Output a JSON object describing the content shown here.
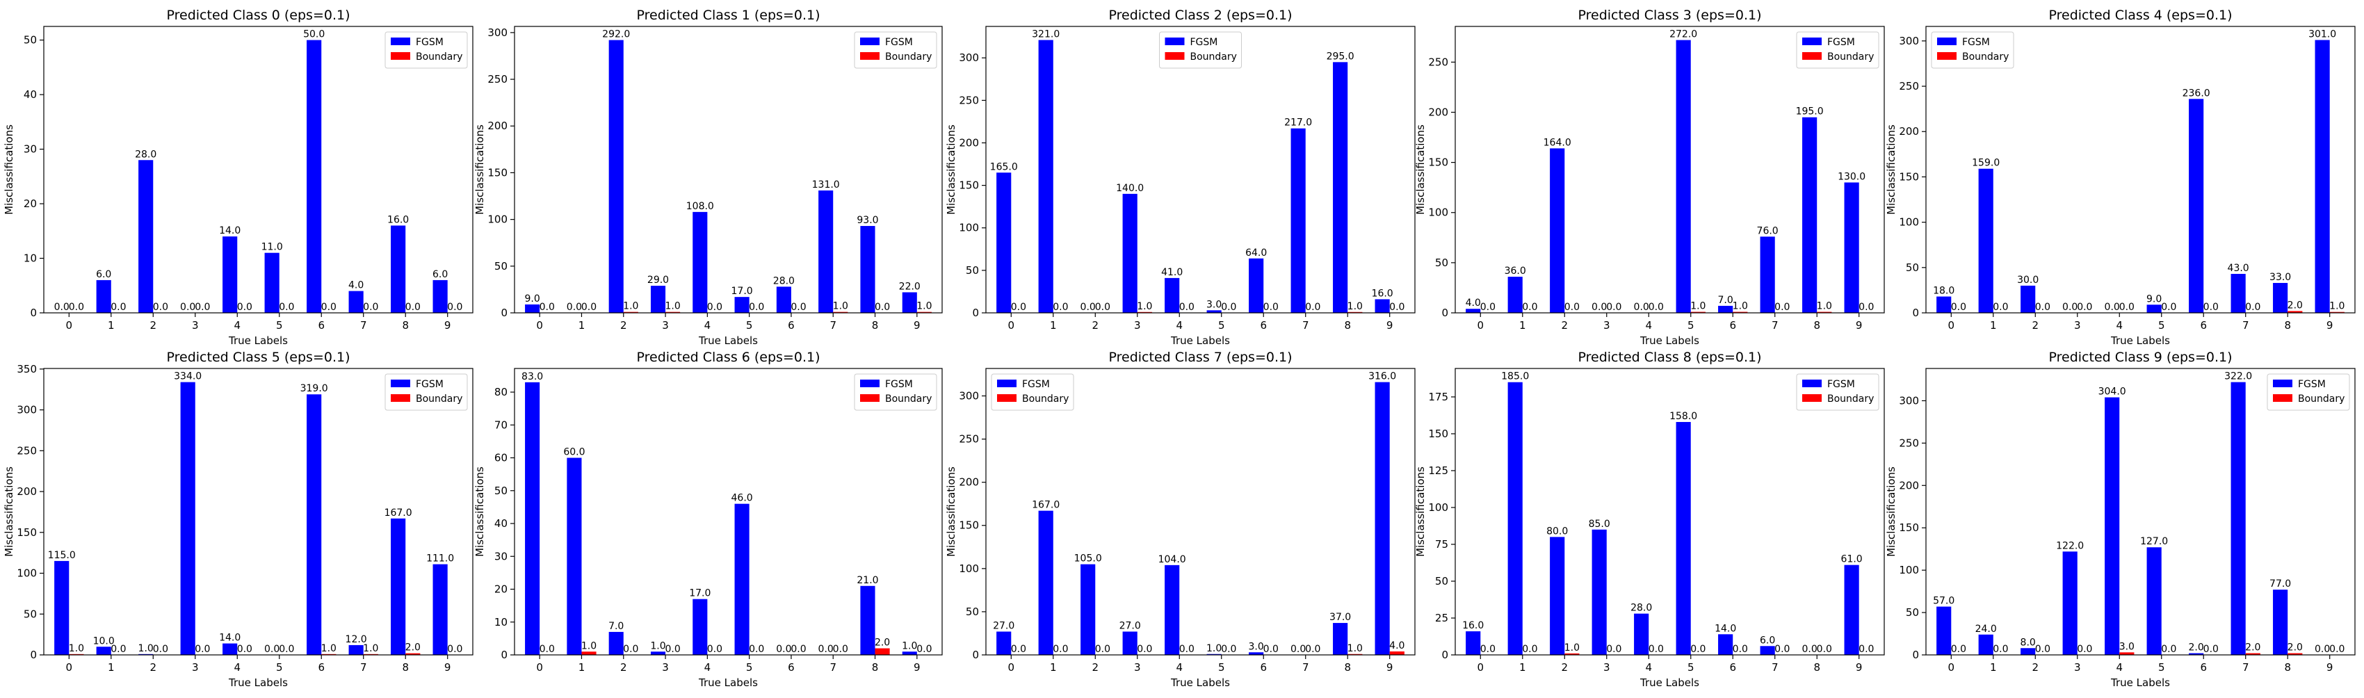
{
  "chart_data": [
    {
      "type": "bar",
      "title": "Predicted Class 0 (eps=0.1)",
      "xlabel": "True Labels",
      "ylabel": "Misclassifications",
      "categories": [
        "0",
        "1",
        "2",
        "3",
        "4",
        "5",
        "6",
        "7",
        "8",
        "9"
      ],
      "ylim": [
        0,
        52.5
      ],
      "yticks": [
        0,
        10,
        20,
        30,
        40,
        50
      ],
      "legend": "top-right",
      "series": [
        {
          "name": "FGSM",
          "color": "#0000ff",
          "values": [
            0,
            6,
            28,
            0,
            14,
            11,
            50,
            4,
            16,
            6
          ]
        },
        {
          "name": "Boundary",
          "color": "#ff0000",
          "values": [
            0,
            0,
            0,
            0,
            0,
            0,
            0,
            0,
            0,
            0
          ]
        }
      ]
    },
    {
      "type": "bar",
      "title": "Predicted Class 1 (eps=0.1)",
      "xlabel": "True Labels",
      "ylabel": "Misclassifications",
      "categories": [
        "0",
        "1",
        "2",
        "3",
        "4",
        "5",
        "6",
        "7",
        "8",
        "9"
      ],
      "ylim": [
        0,
        306.6
      ],
      "yticks": [
        0,
        50,
        100,
        150,
        200,
        250,
        300
      ],
      "legend": "top-right",
      "series": [
        {
          "name": "FGSM",
          "color": "#0000ff",
          "values": [
            9,
            0,
            292,
            29,
            108,
            17,
            28,
            131,
            93,
            22
          ]
        },
        {
          "name": "Boundary",
          "color": "#ff0000",
          "values": [
            0,
            0,
            1,
            1,
            0,
            0,
            0,
            1,
            0,
            1
          ]
        }
      ]
    },
    {
      "type": "bar",
      "title": "Predicted Class 2 (eps=0.1)",
      "xlabel": "True Labels",
      "ylabel": "Misclassifications",
      "categories": [
        "0",
        "1",
        "2",
        "3",
        "4",
        "5",
        "6",
        "7",
        "8",
        "9"
      ],
      "ylim": [
        0,
        337
      ],
      "yticks": [
        0,
        50,
        100,
        150,
        200,
        250,
        300
      ],
      "legend": "top-center",
      "series": [
        {
          "name": "FGSM",
          "color": "#0000ff",
          "values": [
            165,
            321,
            0,
            140,
            41,
            3,
            64,
            217,
            295,
            16
          ]
        },
        {
          "name": "Boundary",
          "color": "#ff0000",
          "values": [
            0,
            0,
            0,
            1,
            0,
            0,
            0,
            0,
            1,
            0
          ]
        }
      ]
    },
    {
      "type": "bar",
      "title": "Predicted Class 3 (eps=0.1)",
      "xlabel": "True Labels",
      "ylabel": "Misclassifications",
      "categories": [
        "0",
        "1",
        "2",
        "3",
        "4",
        "5",
        "6",
        "7",
        "8",
        "9"
      ],
      "ylim": [
        0,
        285.6
      ],
      "yticks": [
        0,
        50,
        100,
        150,
        200,
        250
      ],
      "legend": "top-right",
      "series": [
        {
          "name": "FGSM",
          "color": "#0000ff",
          "values": [
            4,
            36,
            164,
            0,
            0,
            272,
            7,
            76,
            195,
            130
          ]
        },
        {
          "name": "Boundary",
          "color": "#ff0000",
          "values": [
            0,
            0,
            0,
            0,
            0,
            1,
            1,
            0,
            1,
            0
          ]
        }
      ]
    },
    {
      "type": "bar",
      "title": "Predicted Class 4 (eps=0.1)",
      "xlabel": "True Labels",
      "ylabel": "Misclassifications",
      "categories": [
        "0",
        "1",
        "2",
        "3",
        "4",
        "5",
        "6",
        "7",
        "8",
        "9"
      ],
      "ylim": [
        0,
        316
      ],
      "yticks": [
        0,
        50,
        100,
        150,
        200,
        250,
        300
      ],
      "legend": "top-left",
      "series": [
        {
          "name": "FGSM",
          "color": "#0000ff",
          "values": [
            18,
            159,
            30,
            0,
            0,
            9,
            236,
            43,
            33,
            301
          ]
        },
        {
          "name": "Boundary",
          "color": "#ff0000",
          "values": [
            0,
            0,
            0,
            0,
            0,
            0,
            0,
            0,
            2,
            1
          ]
        }
      ]
    },
    {
      "type": "bar",
      "title": "Predicted Class 5 (eps=0.1)",
      "xlabel": "True Labels",
      "ylabel": "Misclassifications",
      "categories": [
        "0",
        "1",
        "2",
        "3",
        "4",
        "5",
        "6",
        "7",
        "8",
        "9"
      ],
      "ylim": [
        0,
        350.7
      ],
      "yticks": [
        0,
        50,
        100,
        150,
        200,
        250,
        300,
        350
      ],
      "legend": "top-right",
      "series": [
        {
          "name": "FGSM",
          "color": "#0000ff",
          "values": [
            115,
            10,
            1,
            334,
            14,
            0,
            319,
            12,
            167,
            111
          ]
        },
        {
          "name": "Boundary",
          "color": "#ff0000",
          "values": [
            1,
            0,
            0,
            0,
            0,
            0,
            1,
            1,
            2,
            0
          ]
        }
      ]
    },
    {
      "type": "bar",
      "title": "Predicted Class 6 (eps=0.1)",
      "xlabel": "True Labels",
      "ylabel": "Misclassifications",
      "categories": [
        "0",
        "1",
        "2",
        "3",
        "4",
        "5",
        "6",
        "7",
        "8",
        "9"
      ],
      "ylim": [
        0,
        87.2
      ],
      "yticks": [
        0,
        10,
        20,
        30,
        40,
        50,
        60,
        70,
        80
      ],
      "legend": "top-right",
      "series": [
        {
          "name": "FGSM",
          "color": "#0000ff",
          "values": [
            83,
            60,
            7,
            1,
            17,
            46,
            0,
            0,
            21,
            1
          ]
        },
        {
          "name": "Boundary",
          "color": "#ff0000",
          "values": [
            0,
            1,
            0,
            0,
            0,
            0,
            0,
            0,
            2,
            0
          ]
        }
      ]
    },
    {
      "type": "bar",
      "title": "Predicted Class 7 (eps=0.1)",
      "xlabel": "True Labels",
      "ylabel": "Misclassifications",
      "categories": [
        "0",
        "1",
        "2",
        "3",
        "4",
        "5",
        "6",
        "7",
        "8",
        "9"
      ],
      "ylim": [
        0,
        331.8
      ],
      "yticks": [
        0,
        50,
        100,
        150,
        200,
        250,
        300
      ],
      "legend": "top-left",
      "series": [
        {
          "name": "FGSM",
          "color": "#0000ff",
          "values": [
            27,
            167,
            105,
            27,
            104,
            1,
            3,
            0,
            37,
            316
          ]
        },
        {
          "name": "Boundary",
          "color": "#ff0000",
          "values": [
            0,
            0,
            0,
            0,
            0,
            0,
            0,
            0,
            1,
            4
          ]
        }
      ]
    },
    {
      "type": "bar",
      "title": "Predicted Class 8 (eps=0.1)",
      "xlabel": "True Labels",
      "ylabel": "Misclassifications",
      "categories": [
        "0",
        "1",
        "2",
        "3",
        "4",
        "5",
        "6",
        "7",
        "8",
        "9"
      ],
      "ylim": [
        0,
        194.3
      ],
      "yticks": [
        0,
        25,
        50,
        75,
        100,
        125,
        150,
        175
      ],
      "legend": "top-right",
      "series": [
        {
          "name": "FGSM",
          "color": "#0000ff",
          "values": [
            16,
            185,
            80,
            85,
            28,
            158,
            14,
            6,
            0,
            61
          ]
        },
        {
          "name": "Boundary",
          "color": "#ff0000",
          "values": [
            0,
            0,
            1,
            0,
            0,
            0,
            0,
            0,
            0,
            0
          ]
        }
      ]
    },
    {
      "type": "bar",
      "title": "Predicted Class 9 (eps=0.1)",
      "xlabel": "True Labels",
      "ylabel": "Misclassifications",
      "categories": [
        "0",
        "1",
        "2",
        "3",
        "4",
        "5",
        "6",
        "7",
        "8",
        "9"
      ],
      "ylim": [
        0,
        338.1
      ],
      "yticks": [
        0,
        50,
        100,
        150,
        200,
        250,
        300
      ],
      "legend": "top-right",
      "series": [
        {
          "name": "FGSM",
          "color": "#0000ff",
          "values": [
            57,
            24,
            8,
            122,
            304,
            127,
            2,
            322,
            77,
            0
          ]
        },
        {
          "name": "Boundary",
          "color": "#ff0000",
          "values": [
            0,
            0,
            0,
            0,
            3,
            0,
            0,
            2,
            2,
            0
          ]
        }
      ]
    }
  ]
}
